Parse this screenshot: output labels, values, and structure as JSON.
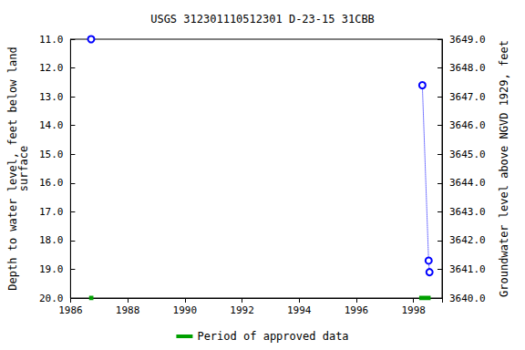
{
  "chart_data": {
    "type": "line",
    "title": "USGS 312301110512301 D-23-15 31CBB",
    "y_label": "Depth to water level, feet below land\nsurface",
    "y2_label": "Groundwater level above NGVD 1929, feet",
    "x": [
      1986.72,
      null,
      1998.31,
      1998.53,
      1998.56
    ],
    "series": [
      {
        "values": [
          11.0,
          null,
          12.6,
          18.7,
          19.1
        ],
        "color": "#0000ff",
        "marker": "circle",
        "line_style": "dotted"
      },
      {
        "name": "Period of approved data",
        "type": "period",
        "color": "#00a000",
        "periods": [
          [
            1986.65,
            1986.8
          ],
          [
            1998.2,
            1998.6
          ]
        ]
      }
    ],
    "xlim": [
      1986,
      1999
    ],
    "xticks": [
      1986,
      1988,
      1990,
      1992,
      1994,
      1996,
      1998
    ],
    "ylim": [
      11,
      20
    ],
    "yticks": [
      {
        "value": 11,
        "label": "11.0"
      },
      {
        "value": 12,
        "label": "12.0"
      },
      {
        "value": 13,
        "label": "13.0"
      },
      {
        "value": 14,
        "label": "14.0"
      },
      {
        "value": 15,
        "label": "15.0"
      },
      {
        "value": 16,
        "label": "16.0"
      },
      {
        "value": 17,
        "label": "17.0"
      },
      {
        "value": 18,
        "label": "18.0"
      },
      {
        "value": 19,
        "label": "19.0"
      },
      {
        "value": 20,
        "label": "20.0"
      }
    ],
    "y2lim": [
      3640,
      3649
    ],
    "y2ticks": [
      {
        "value": 3640,
        "label": "3640.0"
      },
      {
        "value": 3641,
        "label": "3641.0"
      },
      {
        "value": 3642,
        "label": "3642.0"
      },
      {
        "value": 3643,
        "label": "3643.0"
      },
      {
        "value": 3644,
        "label": "3644.0"
      },
      {
        "value": 3645,
        "label": "3645.0"
      },
      {
        "value": 3646,
        "label": "3646.0"
      },
      {
        "value": 3647,
        "label": "3647.0"
      },
      {
        "value": 3648,
        "label": "3648.0"
      },
      {
        "value": 3649,
        "label": "3649.0"
      }
    ],
    "grid": false,
    "legend": "bottom"
  }
}
